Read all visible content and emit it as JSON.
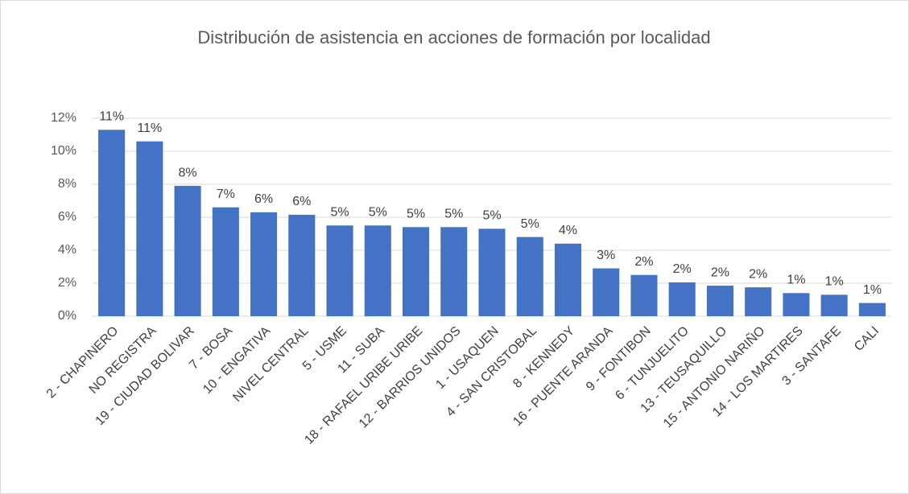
{
  "chart_data": {
    "type": "bar",
    "title": "Distribución de asistencia en acciones de formación por localidad",
    "categories": [
      "2 - CHAPINERO",
      "NO REGISTRA",
      "19 - CIUDAD BOLIVAR",
      "7 - BOSA",
      "10 - ENGATIVA",
      "NIVEL CENTRAL",
      "5 - USME",
      "11 - SUBA",
      "18 - RAFAEL URIBE URIBE",
      "12 - BARRIOS UNIDOS",
      "1 - USAQUEN",
      "4 - SAN CRISTOBAL",
      "8 - KENNEDY",
      "16 - PUENTE ARANDA",
      "9 - FONTIBON",
      "6 - TUNJUELITO",
      "13 - TEUSAQUILLO",
      "15 - ANTONIO NARIÑO",
      "14 - LOS MARTIRES",
      "3 - SANTAFE",
      "CALI"
    ],
    "values": [
      11.3,
      10.6,
      7.9,
      6.6,
      6.3,
      6.15,
      5.5,
      5.5,
      5.4,
      5.4,
      5.3,
      4.8,
      4.4,
      2.9,
      2.5,
      2.05,
      1.85,
      1.75,
      1.4,
      1.3,
      0.8
    ],
    "value_labels": [
      "11%",
      "11%",
      "8%",
      "7%",
      "6%",
      "6%",
      "5%",
      "5%",
      "5%",
      "5%",
      "5%",
      "5%",
      "4%",
      "3%",
      "2%",
      "2%",
      "2%",
      "2%",
      "1%",
      "1%",
      "1%"
    ],
    "color": "#4472c4",
    "ylim": [
      0,
      12
    ],
    "yticks": [
      {
        "value": 0,
        "label": "0%"
      },
      {
        "value": 2,
        "label": "2%"
      },
      {
        "value": 4,
        "label": "4%"
      },
      {
        "value": 6,
        "label": "6%"
      },
      {
        "value": 8,
        "label": "8%"
      },
      {
        "value": 10,
        "label": "10%"
      },
      {
        "value": 12,
        "label": "12%"
      }
    ],
    "grid": true
  }
}
